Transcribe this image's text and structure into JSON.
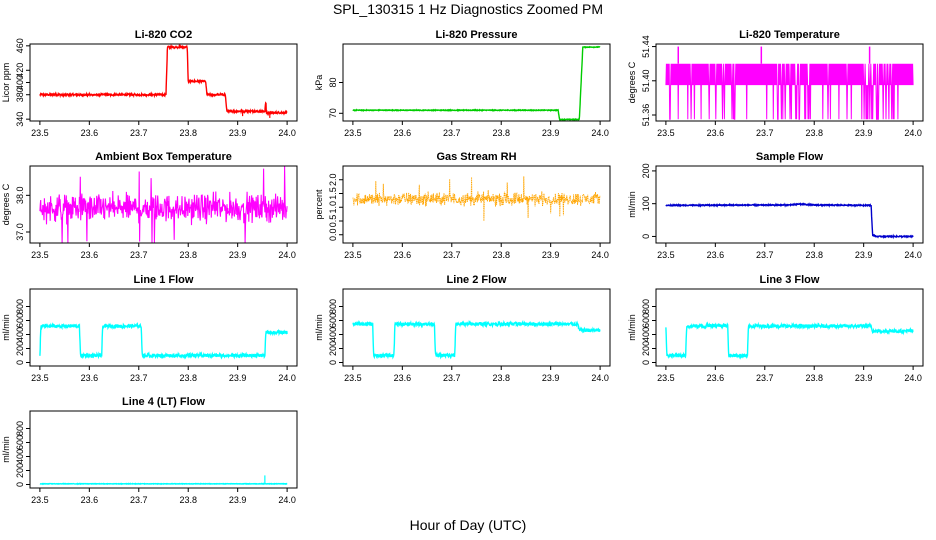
{
  "page": {
    "title": "SPL_130315  1 Hz Diagnostics Zoomed PM",
    "xlabel": "Hour of Day (UTC)"
  },
  "chart_data": [
    {
      "type": "line",
      "title": "Li-820 CO2",
      "ylabel": "Licor ppm",
      "color": "#ff0000",
      "xlim": [
        23.48,
        24.02
      ],
      "ylim": [
        337,
        463
      ],
      "xticks": [
        23.5,
        23.6,
        23.7,
        23.8,
        23.9,
        24.0
      ],
      "xtick_labels": [
        "23.5",
        "23.6",
        "23.7",
        "23.8",
        "23.9",
        "24.0"
      ],
      "yticks": [
        340,
        380,
        400,
        420,
        460
      ],
      "ytick_labels": [
        "340",
        "380",
        "400",
        "420",
        "460"
      ],
      "noise": 1.5,
      "segments": [
        [
          23.5,
          380
        ],
        [
          23.755,
          380
        ],
        [
          23.758,
          458
        ],
        [
          23.798,
          458
        ],
        [
          23.8,
          402
        ],
        [
          23.835,
          402
        ],
        [
          23.838,
          380
        ],
        [
          23.875,
          380
        ],
        [
          23.878,
          353
        ],
        [
          23.955,
          353
        ],
        [
          23.957,
          370
        ],
        [
          23.958,
          350
        ],
        [
          24.0,
          351
        ]
      ],
      "spikes": [
        [
          23.91,
          345
        ],
        [
          23.965,
          342
        ]
      ]
    },
    {
      "type": "line",
      "title": "Li-820 Pressure",
      "ylabel": "kPa",
      "color": "#00cc00",
      "xlim": [
        23.48,
        24.02
      ],
      "ylim": [
        67.5,
        92.5
      ],
      "xticks": [
        23.5,
        23.6,
        23.7,
        23.8,
        23.9,
        24.0
      ],
      "xtick_labels": [
        "23.5",
        "23.6",
        "23.7",
        "23.8",
        "23.9",
        "24.0"
      ],
      "yticks": [
        70,
        80
      ],
      "ytick_labels": [
        "70",
        "80"
      ],
      "noise": 0.1,
      "segments": [
        [
          23.5,
          71
        ],
        [
          23.915,
          71
        ],
        [
          23.918,
          68
        ],
        [
          23.958,
          68
        ],
        [
          23.965,
          91.5
        ],
        [
          24.0,
          91.5
        ]
      ],
      "spikes": []
    },
    {
      "type": "line",
      "title": "Li-820 Temperature",
      "ylabel": "degrees C",
      "color": "#ff00ff",
      "xlim": [
        23.48,
        24.02
      ],
      "ylim": [
        51.353,
        51.443
      ],
      "xticks": [
        23.5,
        23.6,
        23.7,
        23.8,
        23.9,
        24.0
      ],
      "xtick_labels": [
        "23.5",
        "23.6",
        "23.7",
        "23.8",
        "23.9",
        "24.0"
      ],
      "yticks": [
        51.36,
        51.4,
        51.44
      ],
      "ytick_labels": [
        "51.36",
        "51.40",
        "51.44"
      ],
      "dense": {
        "low": 51.395,
        "high": 51.42,
        "drops_to": 51.355,
        "drops": 60,
        "peaks": [
          23.525,
          23.693,
          23.912
        ],
        "peak_value": 51.44
      }
    },
    {
      "type": "line",
      "title": "Ambient Box Temperature",
      "ylabel": "degrees C",
      "color": "#ff00ff",
      "xlim": [
        23.48,
        24.02
      ],
      "ylim": [
        36.7,
        38.8
      ],
      "xticks": [
        23.5,
        23.6,
        23.7,
        23.8,
        23.9,
        24.0
      ],
      "xtick_labels": [
        "23.5",
        "23.6",
        "23.7",
        "23.8",
        "23.9",
        "24.0"
      ],
      "yticks": [
        37.0,
        38.0
      ],
      "ytick_labels": [
        "37.0",
        "38.0"
      ],
      "band": {
        "center": 37.65,
        "amp": 0.55
      }
    },
    {
      "type": "scatter",
      "title": "Gas Stream RH",
      "ylabel": "percent",
      "color": "#ffa500",
      "xlim": [
        23.48,
        24.02
      ],
      "ylim": [
        -0.3,
        2.5
      ],
      "xticks": [
        23.5,
        23.6,
        23.7,
        23.8,
        23.9,
        24.0
      ],
      "xtick_labels": [
        "23.5",
        "23.6",
        "23.7",
        "23.8",
        "23.9",
        "24.0"
      ],
      "yticks": [
        0.0,
        0.5,
        1.0,
        1.5,
        2.0
      ],
      "ytick_labels": [
        "0.0",
        "0.5",
        "1.0",
        "1.5",
        "2.0"
      ],
      "band": {
        "center": 1.3,
        "amp": 0.35
      }
    },
    {
      "type": "line",
      "title": "Sample Flow",
      "ylabel": "ml/min",
      "color": "#0000cc",
      "xlim": [
        23.48,
        24.02
      ],
      "ylim": [
        -20,
        215
      ],
      "xticks": [
        23.5,
        23.6,
        23.7,
        23.8,
        23.9,
        24.0
      ],
      "xtick_labels": [
        "23.5",
        "23.6",
        "23.7",
        "23.8",
        "23.9",
        "24.0"
      ],
      "yticks": [
        0,
        100,
        200
      ],
      "ytick_labels": [
        "0",
        "100",
        "200"
      ],
      "noise": 1.5,
      "segments": [
        [
          23.5,
          95
        ],
        [
          23.75,
          96
        ],
        [
          23.77,
          99
        ],
        [
          23.8,
          96
        ],
        [
          23.915,
          95
        ],
        [
          23.918,
          5
        ],
        [
          23.925,
          0
        ],
        [
          24.0,
          0
        ]
      ],
      "spikes": []
    },
    {
      "type": "line",
      "title": "Line 1 Flow",
      "ylabel": "ml/min",
      "color": "#00ffff",
      "xlim": [
        23.48,
        24.02
      ],
      "ylim": [
        -50,
        1050
      ],
      "xticks": [
        23.5,
        23.6,
        23.7,
        23.8,
        23.9,
        24.0
      ],
      "xtick_labels": [
        "23.5",
        "23.6",
        "23.7",
        "23.8",
        "23.9",
        "24.0"
      ],
      "yticks": [
        0,
        200,
        400,
        600,
        800
      ],
      "ytick_labels": [
        "0",
        "200",
        "400",
        "600",
        "800"
      ],
      "noise": 25,
      "segments": [
        [
          23.5,
          100
        ],
        [
          23.502,
          520
        ],
        [
          23.58,
          520
        ],
        [
          23.582,
          100
        ],
        [
          23.625,
          100
        ],
        [
          23.627,
          520
        ],
        [
          23.705,
          520
        ],
        [
          23.707,
          100
        ],
        [
          23.955,
          100
        ],
        [
          23.957,
          430
        ],
        [
          24.0,
          430
        ]
      ],
      "spikes": []
    },
    {
      "type": "line",
      "title": "Line 2 Flow",
      "ylabel": "ml/min",
      "color": "#00ffff",
      "xlim": [
        23.48,
        24.02
      ],
      "ylim": [
        -50,
        1050
      ],
      "xticks": [
        23.5,
        23.6,
        23.7,
        23.8,
        23.9,
        24.0
      ],
      "xtick_labels": [
        "23.5",
        "23.6",
        "23.7",
        "23.8",
        "23.9",
        "24.0"
      ],
      "yticks": [
        0,
        200,
        400,
        600,
        800
      ],
      "ytick_labels": [
        "0",
        "200",
        "400",
        "600",
        "800"
      ],
      "noise": 25,
      "segments": [
        [
          23.5,
          550
        ],
        [
          23.54,
          550
        ],
        [
          23.542,
          100
        ],
        [
          23.583,
          100
        ],
        [
          23.585,
          550
        ],
        [
          23.665,
          550
        ],
        [
          23.667,
          100
        ],
        [
          23.706,
          100
        ],
        [
          23.708,
          550
        ],
        [
          23.955,
          550
        ],
        [
          23.958,
          460
        ],
        [
          24.0,
          460
        ]
      ],
      "spikes": []
    },
    {
      "type": "line",
      "title": "Line 3 Flow",
      "ylabel": "ml/min",
      "color": "#00ffff",
      "xlim": [
        23.48,
        24.02
      ],
      "ylim": [
        -50,
        1050
      ],
      "xticks": [
        23.5,
        23.6,
        23.7,
        23.8,
        23.9,
        24.0
      ],
      "xtick_labels": [
        "23.5",
        "23.6",
        "23.7",
        "23.8",
        "23.9",
        "24.0"
      ],
      "yticks": [
        0,
        200,
        400,
        600,
        800
      ],
      "ytick_labels": [
        "0",
        "200",
        "400",
        "600",
        "800"
      ],
      "noise": 25,
      "segments": [
        [
          23.5,
          480
        ],
        [
          23.502,
          100
        ],
        [
          23.54,
          100
        ],
        [
          23.542,
          520
        ],
        [
          23.582,
          520
        ],
        [
          23.584,
          530
        ],
        [
          23.625,
          530
        ],
        [
          23.627,
          100
        ],
        [
          23.665,
          100
        ],
        [
          23.667,
          520
        ],
        [
          23.915,
          520
        ],
        [
          23.918,
          450
        ],
        [
          24.0,
          450
        ]
      ],
      "spikes": []
    },
    {
      "type": "line",
      "title": "Line 4 (LT) Flow",
      "ylabel": "ml/min",
      "color": "#00ffff",
      "xlim": [
        23.48,
        24.02
      ],
      "ylim": [
        -50,
        1050
      ],
      "xticks": [
        23.5,
        23.6,
        23.7,
        23.8,
        23.9,
        24.0
      ],
      "xtick_labels": [
        "23.5",
        "23.6",
        "23.7",
        "23.8",
        "23.9",
        "24.0"
      ],
      "yticks": [
        0,
        200,
        400,
        600,
        800
      ],
      "ytick_labels": [
        "0",
        "200",
        "400",
        "600",
        "800"
      ],
      "noise": 3,
      "segments": [
        [
          23.5,
          10
        ],
        [
          24.0,
          10
        ]
      ],
      "spikes": [
        [
          23.955,
          130
        ]
      ]
    }
  ]
}
